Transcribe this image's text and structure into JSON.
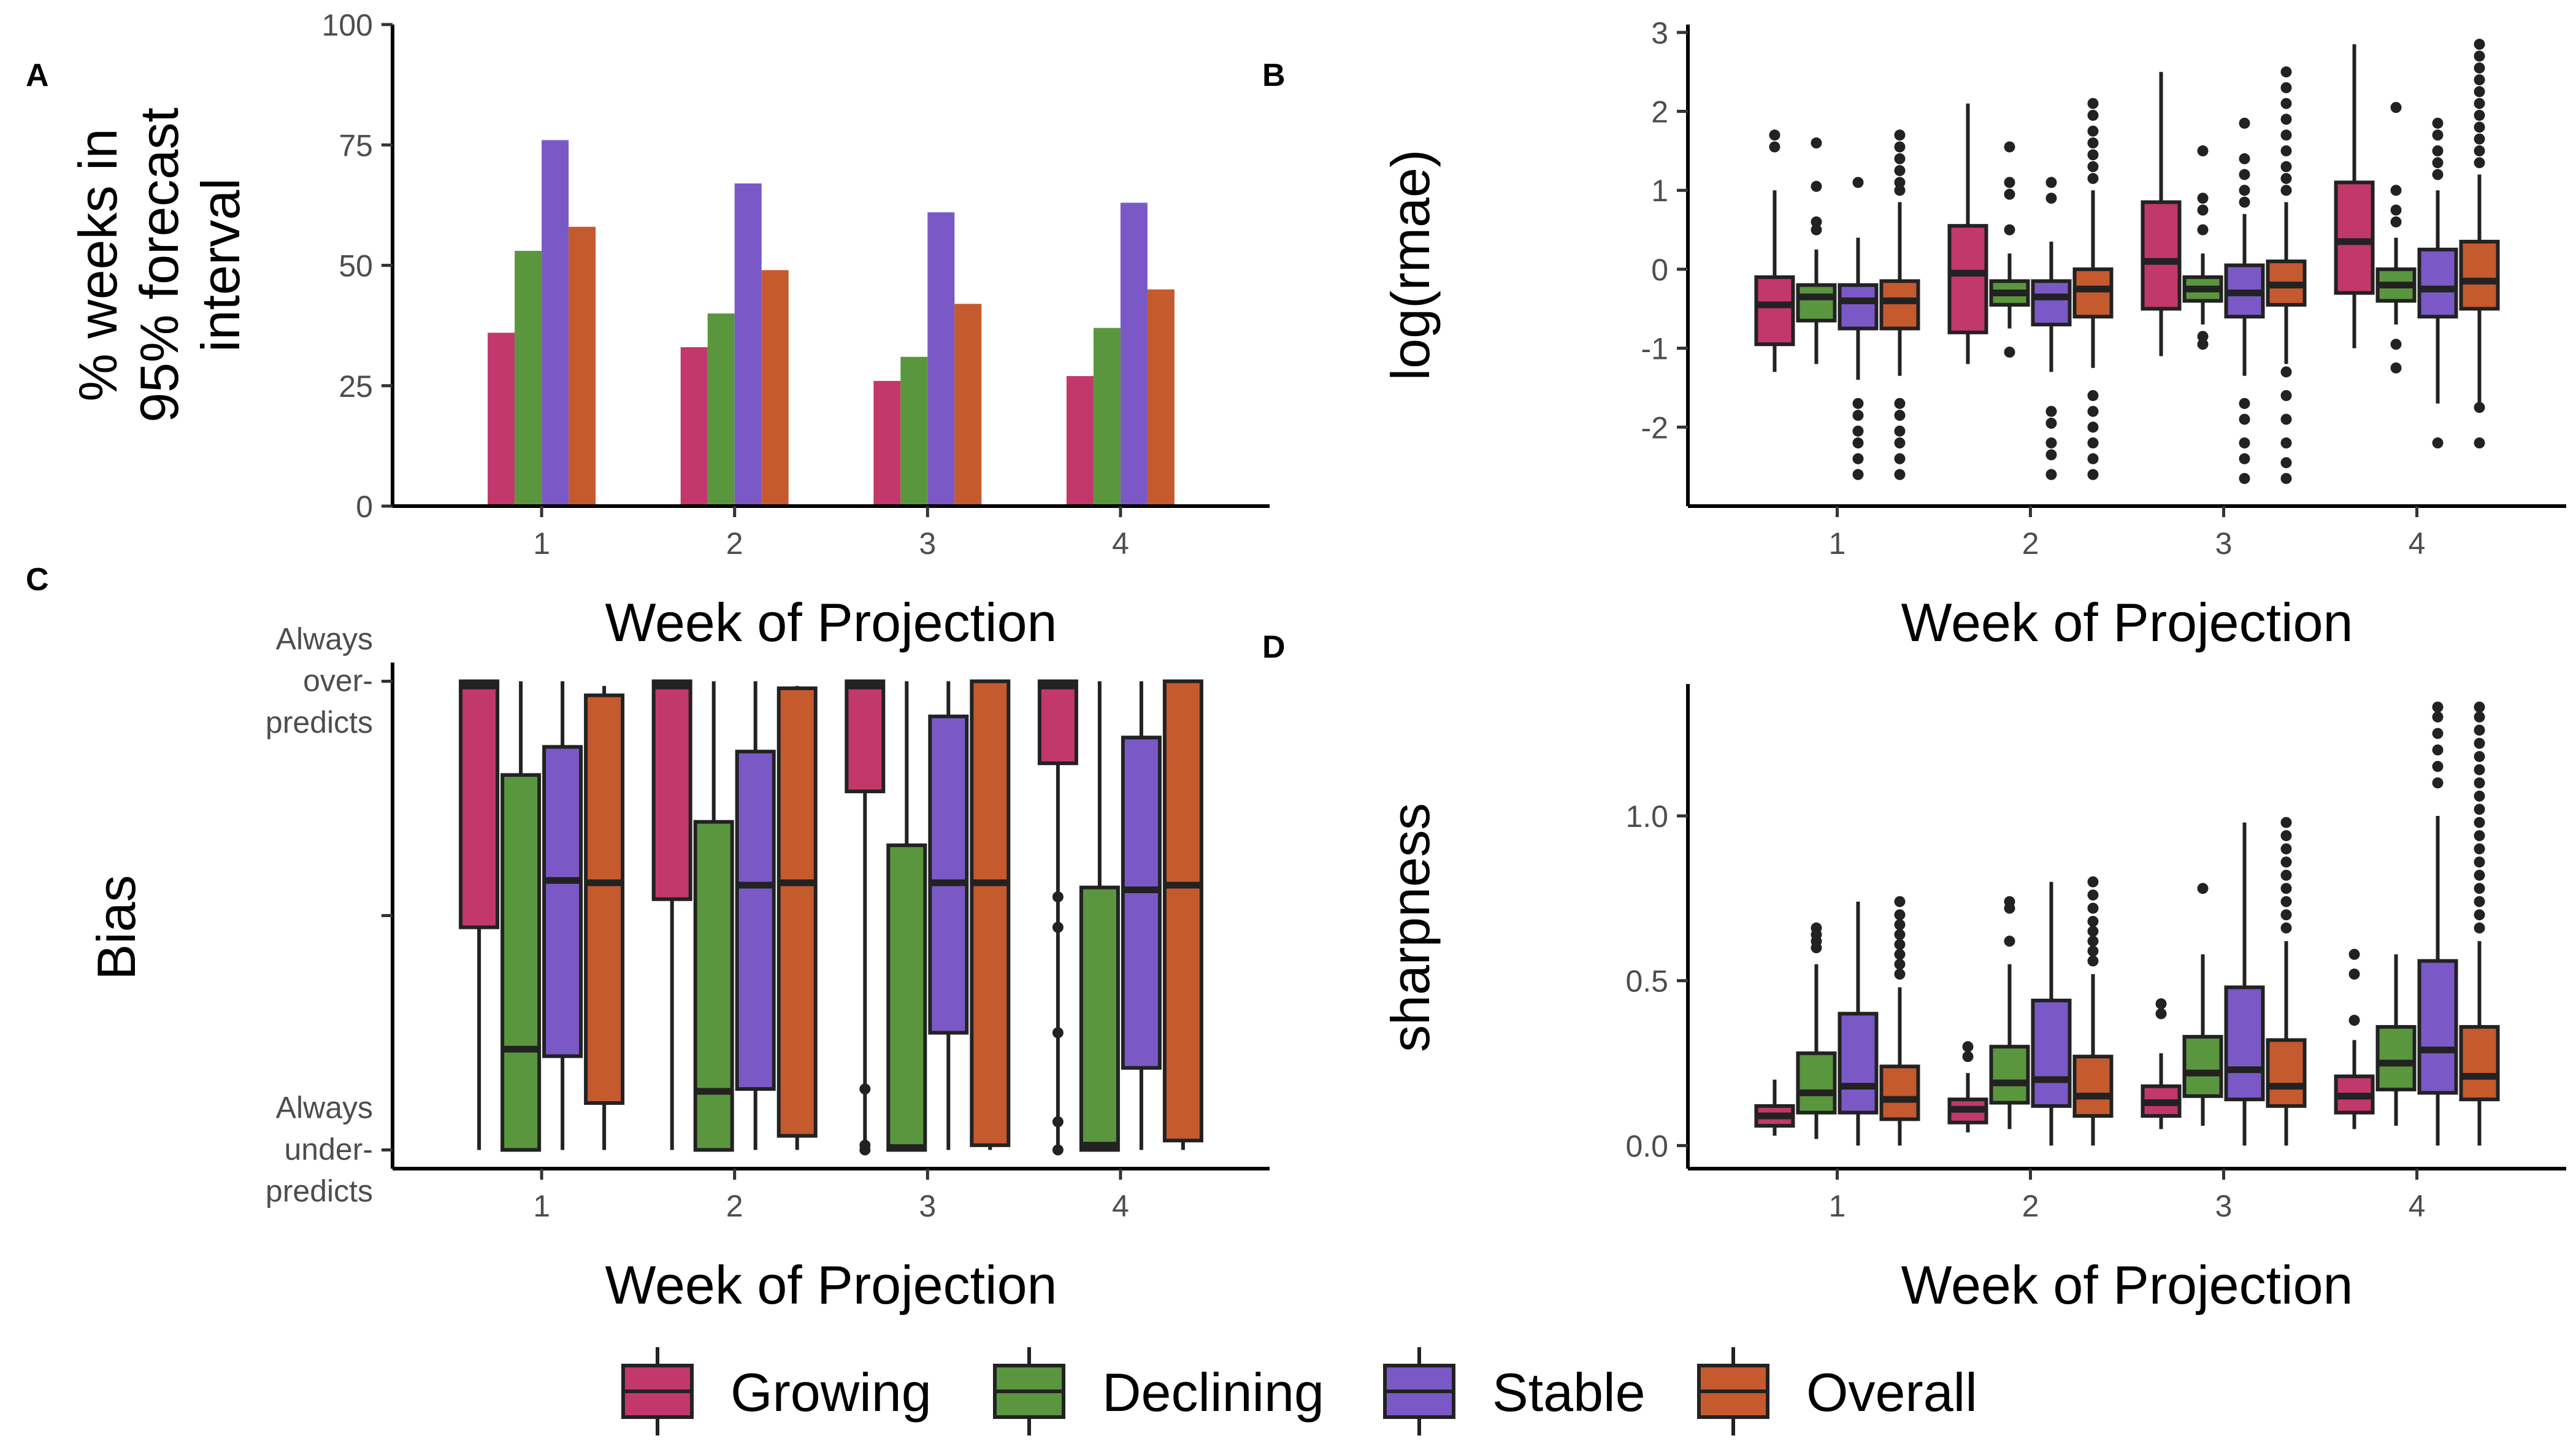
{
  "colors": {
    "Growing": "#c2386a",
    "Declining": "#5a963e",
    "Stable": "#7a59c7",
    "Overall": "#c55a2e"
  },
  "legend": [
    "Growing",
    "Declining",
    "Stable",
    "Overall"
  ],
  "chart_data": [
    {
      "panel": "A",
      "type": "bar",
      "xlabel": "Week of Projection",
      "ylabel": "% weeks in 95% forecast interval",
      "ylabel_lines": [
        "% weeks in",
        "95% forecast",
        "interval"
      ],
      "categories": [
        "1",
        "2",
        "3",
        "4"
      ],
      "ylim": [
        0,
        100
      ],
      "yticks": [
        0,
        25,
        50,
        75,
        100
      ],
      "series": [
        {
          "name": "Growing",
          "values": [
            36,
            33,
            26,
            27
          ]
        },
        {
          "name": "Declining",
          "values": [
            53,
            40,
            31,
            37
          ]
        },
        {
          "name": "Stable",
          "values": [
            76,
            67,
            61,
            63
          ]
        },
        {
          "name": "Overall",
          "values": [
            58,
            49,
            42,
            45
          ]
        }
      ]
    },
    {
      "panel": "B",
      "type": "box",
      "xlabel": "Week of Projection",
      "ylabel": "log(rmae)",
      "categories": [
        "1",
        "2",
        "3",
        "4"
      ],
      "ylim": [
        -3.0,
        3.1
      ],
      "yticks": [
        -2,
        -1,
        0,
        1,
        2,
        3
      ],
      "ytick_labels": [
        "-2",
        "-1",
        "0",
        "1",
        "2",
        "3"
      ],
      "groups": [
        {
          "week": "1",
          "boxes": [
            {
              "series": "Growing",
              "lo": -1.3,
              "q1": -0.95,
              "med": -0.45,
              "q3": -0.1,
              "hi": 1.0,
              "out": [
                1.55,
                1.7
              ]
            },
            {
              "series": "Declining",
              "lo": -1.2,
              "q1": -0.65,
              "med": -0.35,
              "q3": -0.2,
              "hi": 0.25,
              "out": [
                0.5,
                0.6,
                1.05,
                1.6
              ]
            },
            {
              "series": "Stable",
              "lo": -1.4,
              "q1": -0.75,
              "med": -0.4,
              "q3": -0.2,
              "hi": 0.4,
              "out": [
                1.1,
                -1.7,
                -1.85,
                -2.05,
                -2.2,
                -2.4,
                -2.6
              ]
            },
            {
              "series": "Overall",
              "lo": -1.35,
              "q1": -0.75,
              "med": -0.4,
              "q3": -0.15,
              "hi": 0.85,
              "out": [
                1.0,
                1.1,
                1.25,
                1.4,
                1.55,
                1.7,
                -1.7,
                -1.85,
                -2.05,
                -2.2,
                -2.4,
                -2.6
              ]
            }
          ]
        },
        {
          "week": "2",
          "boxes": [
            {
              "series": "Growing",
              "lo": -1.2,
              "q1": -0.8,
              "med": -0.05,
              "q3": 0.55,
              "hi": 2.1,
              "out": []
            },
            {
              "series": "Declining",
              "lo": -0.75,
              "q1": -0.45,
              "med": -0.3,
              "q3": -0.15,
              "hi": 0.2,
              "out": [
                0.5,
                0.95,
                1.1,
                1.55,
                -1.05
              ]
            },
            {
              "series": "Stable",
              "lo": -1.3,
              "q1": -0.7,
              "med": -0.35,
              "q3": -0.15,
              "hi": 0.35,
              "out": [
                0.9,
                1.1,
                -1.8,
                -1.95,
                -2.2,
                -2.35,
                -2.6
              ]
            },
            {
              "series": "Overall",
              "lo": -1.25,
              "q1": -0.6,
              "med": -0.25,
              "q3": 0.0,
              "hi": 1.0,
              "out": [
                1.15,
                1.3,
                1.45,
                1.6,
                1.75,
                1.95,
                2.1,
                -1.6,
                -1.8,
                -2.0,
                -2.2,
                -2.4,
                -2.6
              ]
            }
          ]
        },
        {
          "week": "3",
          "boxes": [
            {
              "series": "Growing",
              "lo": -1.1,
              "q1": -0.5,
              "med": 0.1,
              "q3": 0.85,
              "hi": 2.5,
              "out": []
            },
            {
              "series": "Declining",
              "lo": -0.7,
              "q1": -0.4,
              "med": -0.25,
              "q3": -0.1,
              "hi": 0.2,
              "out": [
                0.5,
                0.75,
                0.9,
                1.5,
                -0.85,
                -0.95
              ]
            },
            {
              "series": "Stable",
              "lo": -1.35,
              "q1": -0.6,
              "med": -0.3,
              "q3": 0.05,
              "hi": 0.7,
              "out": [
                0.85,
                1.0,
                1.2,
                1.4,
                1.85,
                -1.7,
                -1.9,
                -2.2,
                -2.4,
                -2.65
              ]
            },
            {
              "series": "Overall",
              "lo": -1.2,
              "q1": -0.45,
              "med": -0.2,
              "q3": 0.1,
              "hi": 0.85,
              "out": [
                1.0,
                1.15,
                1.3,
                1.5,
                1.7,
                1.9,
                2.1,
                2.3,
                2.5,
                -1.3,
                -1.6,
                -1.9,
                -2.2,
                -2.45,
                -2.65
              ]
            }
          ]
        },
        {
          "week": "4",
          "boxes": [
            {
              "series": "Growing",
              "lo": -1.0,
              "q1": -0.3,
              "med": 0.35,
              "q3": 1.1,
              "hi": 2.85,
              "out": []
            },
            {
              "series": "Declining",
              "lo": -0.7,
              "q1": -0.4,
              "med": -0.2,
              "q3": 0.0,
              "hi": 0.4,
              "out": [
                0.6,
                0.75,
                1.0,
                2.05,
                -0.95,
                -1.25
              ]
            },
            {
              "series": "Stable",
              "lo": -1.7,
              "q1": -0.6,
              "med": -0.25,
              "q3": 0.25,
              "hi": 1.0,
              "out": [
                1.2,
                1.35,
                1.5,
                1.7,
                1.85,
                -2.2
              ]
            },
            {
              "series": "Overall",
              "lo": -1.7,
              "q1": -0.5,
              "med": -0.15,
              "q3": 0.35,
              "hi": 1.2,
              "out": [
                1.35,
                1.5,
                1.65,
                1.8,
                1.95,
                2.1,
                2.25,
                2.4,
                2.55,
                2.7,
                2.85,
                -1.75,
                -2.2
              ]
            }
          ]
        }
      ]
    },
    {
      "panel": "C",
      "type": "box",
      "xlabel": "Week of Projection",
      "ylabel": "Bias",
      "categories": [
        "1",
        "2",
        "3",
        "4"
      ],
      "ylim": [
        -1.08,
        1.08
      ],
      "yticks": [
        1,
        0,
        -1
      ],
      "ytick_labels": [
        [
          "Always",
          "over-",
          "predicts"
        ],
        [
          ""
        ],
        [
          "Always",
          "under-",
          "predicts"
        ]
      ],
      "groups": [
        {
          "week": "1",
          "boxes": [
            {
              "series": "Growing",
              "lo": -1.0,
              "q1": -0.05,
              "med": 0.98,
              "q3": 1.0,
              "hi": 1.0,
              "out": []
            },
            {
              "series": "Declining",
              "lo": -1.0,
              "q1": -1.0,
              "med": -0.57,
              "q3": 0.6,
              "hi": 1.0,
              "out": []
            },
            {
              "series": "Stable",
              "lo": -1.0,
              "q1": -0.6,
              "med": 0.15,
              "q3": 0.72,
              "hi": 1.0,
              "out": []
            },
            {
              "series": "Overall",
              "lo": -1.0,
              "q1": -0.8,
              "med": 0.14,
              "q3": 0.94,
              "hi": 0.98,
              "out": []
            }
          ]
        },
        {
          "week": "2",
          "boxes": [
            {
              "series": "Growing",
              "lo": -1.0,
              "q1": 0.07,
              "med": 0.98,
              "q3": 1.0,
              "hi": 1.0,
              "out": []
            },
            {
              "series": "Declining",
              "lo": -1.0,
              "q1": -1.0,
              "med": -0.75,
              "q3": 0.4,
              "hi": 1.0,
              "out": []
            },
            {
              "series": "Stable",
              "lo": -1.0,
              "q1": -0.74,
              "med": 0.13,
              "q3": 0.7,
              "hi": 1.0,
              "out": []
            },
            {
              "series": "Overall",
              "lo": -1.0,
              "q1": -0.94,
              "med": 0.14,
              "q3": 0.97,
              "hi": 0.98,
              "out": []
            }
          ]
        },
        {
          "week": "3",
          "boxes": [
            {
              "series": "Growing",
              "lo": -1.0,
              "q1": 0.53,
              "med": 0.98,
              "q3": 1.0,
              "hi": 1.0,
              "out": [
                -0.74,
                -0.98,
                -1.0
              ]
            },
            {
              "series": "Declining",
              "lo": -1.0,
              "q1": -1.0,
              "med": -0.99,
              "q3": 0.3,
              "hi": 1.0,
              "out": []
            },
            {
              "series": "Stable",
              "lo": -1.0,
              "q1": -0.5,
              "med": 0.14,
              "q3": 0.85,
              "hi": 1.0,
              "out": []
            },
            {
              "series": "Overall",
              "lo": -1.0,
              "q1": -0.98,
              "med": 0.14,
              "q3": 1.0,
              "hi": 1.0,
              "out": []
            }
          ]
        },
        {
          "week": "4",
          "boxes": [
            {
              "series": "Growing",
              "lo": -1.0,
              "q1": 0.65,
              "med": 0.98,
              "q3": 1.0,
              "hi": 1.0,
              "out": [
                0.08,
                -0.05,
                -0.5,
                -0.88,
                -1.0
              ]
            },
            {
              "series": "Declining",
              "lo": -1.0,
              "q1": -1.0,
              "med": -0.98,
              "q3": 0.12,
              "hi": 1.0,
              "out": []
            },
            {
              "series": "Stable",
              "lo": -1.0,
              "q1": -0.65,
              "med": 0.11,
              "q3": 0.76,
              "hi": 1.0,
              "out": []
            },
            {
              "series": "Overall",
              "lo": -1.0,
              "q1": -0.96,
              "med": 0.13,
              "q3": 1.0,
              "hi": 1.0,
              "out": []
            }
          ]
        }
      ]
    },
    {
      "panel": "D",
      "type": "box",
      "xlabel": "Week of Projection",
      "ylabel": "sharpness",
      "categories": [
        "1",
        "2",
        "3",
        "4"
      ],
      "ylim": [
        -0.07,
        1.4
      ],
      "yticks": [
        0,
        0.5,
        1.0
      ],
      "ytick_labels": [
        "0.0",
        "0.5",
        "1.0"
      ],
      "groups": [
        {
          "week": "1",
          "boxes": [
            {
              "series": "Growing",
              "lo": 0.03,
              "q1": 0.06,
              "med": 0.09,
              "q3": 0.12,
              "hi": 0.2,
              "out": []
            },
            {
              "series": "Declining",
              "lo": 0.02,
              "q1": 0.1,
              "med": 0.16,
              "q3": 0.28,
              "hi": 0.55,
              "out": [
                0.6,
                0.62,
                0.64,
                0.66
              ]
            },
            {
              "series": "Stable",
              "lo": 0.0,
              "q1": 0.1,
              "med": 0.18,
              "q3": 0.4,
              "hi": 0.74,
              "out": []
            },
            {
              "series": "Overall",
              "lo": 0.0,
              "q1": 0.08,
              "med": 0.14,
              "q3": 0.24,
              "hi": 0.48,
              "out": [
                0.52,
                0.55,
                0.58,
                0.61,
                0.64,
                0.67,
                0.7,
                0.74
              ]
            }
          ]
        },
        {
          "week": "2",
          "boxes": [
            {
              "series": "Growing",
              "lo": 0.04,
              "q1": 0.07,
              "med": 0.11,
              "q3": 0.14,
              "hi": 0.22,
              "out": [
                0.27,
                0.3
              ]
            },
            {
              "series": "Declining",
              "lo": 0.05,
              "q1": 0.13,
              "med": 0.19,
              "q3": 0.3,
              "hi": 0.55,
              "out": [
                0.62,
                0.72,
                0.74
              ]
            },
            {
              "series": "Stable",
              "lo": 0.0,
              "q1": 0.12,
              "med": 0.2,
              "q3": 0.44,
              "hi": 0.8,
              "out": []
            },
            {
              "series": "Overall",
              "lo": 0.0,
              "q1": 0.09,
              "med": 0.15,
              "q3": 0.27,
              "hi": 0.52,
              "out": [
                0.56,
                0.59,
                0.62,
                0.65,
                0.68,
                0.72,
                0.76,
                0.8
              ]
            }
          ]
        },
        {
          "week": "3",
          "boxes": [
            {
              "series": "Growing",
              "lo": 0.05,
              "q1": 0.09,
              "med": 0.13,
              "q3": 0.18,
              "hi": 0.28,
              "out": [
                0.4,
                0.43
              ]
            },
            {
              "series": "Declining",
              "lo": 0.06,
              "q1": 0.15,
              "med": 0.22,
              "q3": 0.33,
              "hi": 0.58,
              "out": [
                0.78
              ]
            },
            {
              "series": "Stable",
              "lo": 0.0,
              "q1": 0.14,
              "med": 0.23,
              "q3": 0.48,
              "hi": 0.98,
              "out": []
            },
            {
              "series": "Overall",
              "lo": 0.0,
              "q1": 0.12,
              "med": 0.18,
              "q3": 0.32,
              "hi": 0.62,
              "out": [
                0.66,
                0.7,
                0.74,
                0.78,
                0.82,
                0.86,
                0.9,
                0.94,
                0.98
              ]
            }
          ]
        },
        {
          "week": "4",
          "boxes": [
            {
              "series": "Growing",
              "lo": 0.05,
              "q1": 0.1,
              "med": 0.15,
              "q3": 0.21,
              "hi": 0.32,
              "out": [
                0.38,
                0.52,
                0.58
              ]
            },
            {
              "series": "Declining",
              "lo": 0.06,
              "q1": 0.17,
              "med": 0.25,
              "q3": 0.36,
              "hi": 0.58,
              "out": []
            },
            {
              "series": "Stable",
              "lo": 0.0,
              "q1": 0.16,
              "med": 0.29,
              "q3": 0.56,
              "hi": 1.0,
              "out": [
                1.1,
                1.15,
                1.2,
                1.25,
                1.3,
                1.33
              ]
            },
            {
              "series": "Overall",
              "lo": 0.0,
              "q1": 0.14,
              "med": 0.21,
              "q3": 0.36,
              "hi": 0.62,
              "out": [
                0.66,
                0.7,
                0.74,
                0.78,
                0.82,
                0.86,
                0.9,
                0.94,
                0.98,
                1.02,
                1.06,
                1.1,
                1.14,
                1.18,
                1.22,
                1.26,
                1.3,
                1.33
              ]
            }
          ]
        }
      ]
    }
  ]
}
